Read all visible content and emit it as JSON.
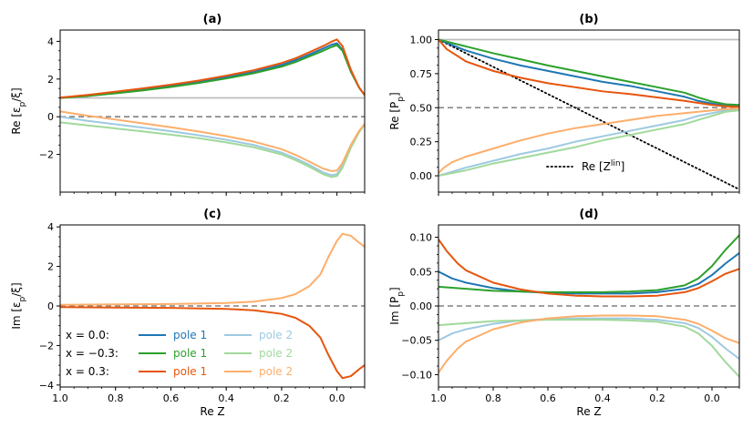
{
  "colors": {
    "pole1_x0": "#1f77b4",
    "pole1_xm": "#2ca02c",
    "pole1_xp": "#e6550d",
    "pole2_x0": "#9ecae1",
    "pole2_xm": "#a1d99b",
    "pole2_xp": "#fdae6b",
    "ref_gray": "#bdbdbd",
    "zero_dash": "#808080"
  },
  "legend": {
    "rows": [
      {
        "x_label": "x = 0.0:",
        "pole1": "pole 1",
        "pole2": "pole 2",
        "c1": "pole1_x0",
        "c2": "pole2_x0"
      },
      {
        "x_label": "x = −0.3:",
        "pole1": "pole 1",
        "pole2": "pole 2",
        "c1": "pole1_xm",
        "c2": "pole2_xm"
      },
      {
        "x_label": "x = 0.3:",
        "pole1": "pole 1",
        "pole2": "pole 2",
        "c1": "pole1_xp",
        "c2": "pole2_xp"
      }
    ]
  },
  "chart_data": [
    {
      "type": "line",
      "panel": "a",
      "title": "(a)",
      "xlabel": "",
      "ylabel": "Re [ε_p/ξ]",
      "xlim": [
        1.0,
        -0.1
      ],
      "ylim": [
        -4.0,
        4.6
      ],
      "xticks": [
        1.0,
        0.8,
        0.6,
        0.4,
        0.2,
        0.0
      ],
      "xtick_labels": [],
      "yticks": [
        -2,
        0,
        2,
        4
      ],
      "ytick_labels": [
        "−2",
        "0",
        "2",
        "4"
      ],
      "hlines": [
        {
          "y": 1.0,
          "style": "solid_gray"
        },
        {
          "y": 0.0,
          "style": "dashed"
        }
      ],
      "series": [
        {
          "name": "x = 0.0 pole 1",
          "color": "pole1_x0",
          "x": [
            1.0,
            0.9,
            0.8,
            0.7,
            0.6,
            0.5,
            0.4,
            0.3,
            0.2,
            0.15,
            0.1,
            0.05,
            0.02,
            0.0,
            -0.02,
            -0.05,
            -0.08,
            -0.1
          ],
          "y": [
            1.0,
            1.12,
            1.28,
            1.45,
            1.63,
            1.85,
            2.1,
            2.38,
            2.75,
            3.0,
            3.3,
            3.62,
            3.82,
            3.9,
            3.55,
            2.4,
            1.55,
            1.15
          ]
        },
        {
          "name": "x = −0.3 pole 1",
          "color": "pole1_xm",
          "x": [
            1.0,
            0.9,
            0.8,
            0.7,
            0.6,
            0.5,
            0.4,
            0.3,
            0.2,
            0.15,
            0.1,
            0.05,
            0.02,
            0.0,
            -0.02,
            -0.05,
            -0.08,
            -0.1
          ],
          "y": [
            1.0,
            1.1,
            1.24,
            1.4,
            1.58,
            1.79,
            2.03,
            2.31,
            2.66,
            2.9,
            3.2,
            3.5,
            3.7,
            3.8,
            3.5,
            2.4,
            1.55,
            1.15
          ]
        },
        {
          "name": "x = 0.3 pole 1",
          "color": "pole1_xp",
          "x": [
            1.0,
            0.9,
            0.8,
            0.7,
            0.6,
            0.5,
            0.4,
            0.3,
            0.2,
            0.15,
            0.1,
            0.05,
            0.02,
            0.0,
            -0.02,
            -0.05,
            -0.08,
            -0.1
          ],
          "y": [
            1.02,
            1.16,
            1.33,
            1.51,
            1.7,
            1.92,
            2.18,
            2.47,
            2.85,
            3.1,
            3.42,
            3.75,
            3.98,
            4.1,
            3.75,
            2.5,
            1.55,
            1.15
          ]
        },
        {
          "name": "x = 0.0 pole 2",
          "color": "pole2_x0",
          "x": [
            1.0,
            0.9,
            0.8,
            0.7,
            0.6,
            0.5,
            0.4,
            0.3,
            0.2,
            0.15,
            0.1,
            0.05,
            0.02,
            0.0,
            -0.02,
            -0.05,
            -0.08,
            -0.1
          ],
          "y": [
            0.0,
            -0.22,
            -0.4,
            -0.58,
            -0.77,
            -0.98,
            -1.22,
            -1.5,
            -1.9,
            -2.2,
            -2.55,
            -2.95,
            -3.1,
            -3.05,
            -2.6,
            -1.6,
            -0.8,
            -0.4
          ]
        },
        {
          "name": "x = −0.3 pole 2",
          "color": "pole2_xm",
          "x": [
            1.0,
            0.9,
            0.8,
            0.7,
            0.6,
            0.5,
            0.4,
            0.3,
            0.2,
            0.15,
            0.1,
            0.05,
            0.02,
            0.0,
            -0.02,
            -0.05,
            -0.08,
            -0.1
          ],
          "y": [
            -0.3,
            -0.46,
            -0.62,
            -0.78,
            -0.95,
            -1.14,
            -1.36,
            -1.62,
            -2.0,
            -2.3,
            -2.65,
            -3.05,
            -3.2,
            -3.15,
            -2.7,
            -1.65,
            -0.82,
            -0.42
          ]
        },
        {
          "name": "x = 0.3 pole 2",
          "color": "pole2_xp",
          "x": [
            1.0,
            0.9,
            0.8,
            0.7,
            0.6,
            0.5,
            0.4,
            0.3,
            0.2,
            0.15,
            0.1,
            0.05,
            0.02,
            0.0,
            -0.02,
            -0.05,
            -0.08,
            -0.1
          ],
          "y": [
            0.28,
            0.05,
            -0.15,
            -0.35,
            -0.56,
            -0.78,
            -1.03,
            -1.32,
            -1.72,
            -2.02,
            -2.38,
            -2.75,
            -2.88,
            -2.85,
            -2.45,
            -1.5,
            -0.75,
            -0.38
          ]
        }
      ]
    },
    {
      "type": "line",
      "panel": "b",
      "title": "(b)",
      "xlabel": "",
      "ylabel": "Re [P_p]",
      "xlim": [
        1.0,
        -0.1
      ],
      "ylim": [
        -0.12,
        1.07
      ],
      "xticks": [
        1.0,
        0.8,
        0.6,
        0.4,
        0.2,
        0.0
      ],
      "xtick_labels": [],
      "yticks": [
        0.0,
        0.25,
        0.5,
        0.75,
        1.0
      ],
      "ytick_labels": [
        "0.00",
        "0.25",
        "0.50",
        "0.75",
        "1.00"
      ],
      "hlines": [
        {
          "y": 1.0,
          "style": "solid_gray"
        },
        {
          "y": 0.5,
          "style": "dashed"
        }
      ],
      "annotation": {
        "text": "Re [Z^lin]",
        "line_label": "Re [Z",
        "sup": "lin",
        "close": "]"
      },
      "series": [
        {
          "name": "Re [Z^lin]",
          "color": "black",
          "dotted": true,
          "x": [
            1.0,
            -0.1
          ],
          "y": [
            1.0,
            -0.1
          ]
        },
        {
          "name": "x = 0.0 pole 1",
          "color": "pole1_x0",
          "x": [
            1.0,
            0.9,
            0.8,
            0.7,
            0.6,
            0.5,
            0.4,
            0.3,
            0.2,
            0.1,
            0.05,
            0.0,
            -0.05,
            -0.1
          ],
          "y": [
            1.0,
            0.92,
            0.86,
            0.81,
            0.77,
            0.73,
            0.69,
            0.66,
            0.62,
            0.58,
            0.55,
            0.53,
            0.515,
            0.51
          ]
        },
        {
          "name": "x = −0.3 pole 1",
          "color": "pole1_xm",
          "x": [
            1.0,
            0.9,
            0.8,
            0.7,
            0.6,
            0.5,
            0.4,
            0.3,
            0.2,
            0.1,
            0.05,
            0.0,
            -0.05,
            -0.1
          ],
          "y": [
            1.0,
            0.95,
            0.9,
            0.855,
            0.81,
            0.77,
            0.73,
            0.69,
            0.65,
            0.61,
            0.575,
            0.545,
            0.525,
            0.52
          ]
        },
        {
          "name": "x = 0.3 pole 1",
          "color": "pole1_xp",
          "x": [
            1.0,
            0.97,
            0.9,
            0.8,
            0.7,
            0.6,
            0.5,
            0.4,
            0.3,
            0.2,
            0.1,
            0.05,
            0.0,
            -0.05,
            -0.1
          ],
          "y": [
            1.0,
            0.93,
            0.84,
            0.77,
            0.72,
            0.68,
            0.65,
            0.62,
            0.6,
            0.575,
            0.55,
            0.535,
            0.52,
            0.51,
            0.505
          ]
        },
        {
          "name": "x = 0.0 pole 2",
          "color": "pole2_x0",
          "x": [
            1.0,
            0.9,
            0.8,
            0.7,
            0.6,
            0.5,
            0.4,
            0.3,
            0.2,
            0.1,
            0.05,
            0.0,
            -0.05,
            -0.1
          ],
          "y": [
            0.0,
            0.06,
            0.11,
            0.16,
            0.2,
            0.25,
            0.29,
            0.33,
            0.37,
            0.41,
            0.44,
            0.46,
            0.48,
            0.49
          ]
        },
        {
          "name": "x = −0.3 pole 2",
          "color": "pole2_xm",
          "x": [
            1.0,
            0.9,
            0.8,
            0.7,
            0.6,
            0.5,
            0.4,
            0.3,
            0.2,
            0.1,
            0.05,
            0.0,
            -0.05,
            -0.1
          ],
          "y": [
            0.0,
            0.04,
            0.09,
            0.13,
            0.17,
            0.21,
            0.26,
            0.3,
            0.34,
            0.38,
            0.41,
            0.44,
            0.47,
            0.48
          ]
        },
        {
          "name": "x = 0.3 pole 2",
          "color": "pole2_xp",
          "x": [
            1.0,
            0.98,
            0.95,
            0.9,
            0.8,
            0.7,
            0.6,
            0.5,
            0.4,
            0.3,
            0.2,
            0.1,
            0.0,
            -0.05,
            -0.1
          ],
          "y": [
            0.02,
            0.06,
            0.1,
            0.14,
            0.2,
            0.26,
            0.31,
            0.35,
            0.38,
            0.41,
            0.44,
            0.46,
            0.48,
            0.49,
            0.495
          ]
        }
      ]
    },
    {
      "type": "line",
      "panel": "c",
      "title": "(c)",
      "xlabel": "Re Z",
      "ylabel": "Im [ε_p/ξ]",
      "xlim": [
        1.0,
        -0.1
      ],
      "ylim": [
        -4.1,
        4.1
      ],
      "xticks": [
        1.0,
        0.8,
        0.6,
        0.4,
        0.2,
        0.0
      ],
      "xtick_labels": [
        "1.0",
        "0.8",
        "0.6",
        "0.4",
        "0.2",
        "0.0"
      ],
      "yticks": [
        -4,
        -2,
        0,
        2,
        4
      ],
      "ytick_labels": [
        "−4",
        "−2",
        "0",
        "2",
        "4"
      ],
      "hlines": [
        {
          "y": 0.0,
          "style": "dashed"
        }
      ],
      "series": [
        {
          "name": "pole 2 (all x)",
          "color": "pole2_xp",
          "x": [
            1.0,
            0.8,
            0.6,
            0.4,
            0.3,
            0.2,
            0.15,
            0.1,
            0.06,
            0.03,
            0.0,
            -0.02,
            -0.05,
            -0.08,
            -0.1
          ],
          "y": [
            0.06,
            0.08,
            0.1,
            0.15,
            0.22,
            0.4,
            0.6,
            1.0,
            1.6,
            2.5,
            3.3,
            3.65,
            3.55,
            3.2,
            3.0
          ]
        },
        {
          "name": "pole 1 (all x)",
          "color": "pole1_xp",
          "x": [
            1.0,
            0.8,
            0.6,
            0.4,
            0.3,
            0.2,
            0.15,
            0.1,
            0.06,
            0.03,
            0.0,
            -0.02,
            -0.05,
            -0.08,
            -0.1
          ],
          "y": [
            -0.06,
            -0.08,
            -0.1,
            -0.15,
            -0.22,
            -0.4,
            -0.6,
            -1.0,
            -1.6,
            -2.5,
            -3.3,
            -3.65,
            -3.55,
            -3.2,
            -3.0
          ]
        }
      ]
    },
    {
      "type": "line",
      "panel": "d",
      "title": "(d)",
      "xlabel": "Re Z",
      "ylabel": "Im [P_p]",
      "xlim": [
        1.0,
        -0.1
      ],
      "ylim": [
        -0.118,
        0.118
      ],
      "xticks": [
        1.0,
        0.8,
        0.6,
        0.4,
        0.2,
        0.0
      ],
      "xtick_labels": [
        "1.0",
        "0.8",
        "0.6",
        "0.4",
        "0.2",
        "0.0"
      ],
      "yticks": [
        -0.1,
        -0.05,
        0.0,
        0.05,
        0.1
      ],
      "ytick_labels": [
        "−0.10",
        "−0.05",
        "0.00",
        "0.05",
        "0.10"
      ],
      "hlines": [
        {
          "y": 0.0,
          "style": "dashed"
        }
      ],
      "series": [
        {
          "name": "x = 0.0 pole 1",
          "color": "pole1_x0",
          "x": [
            1.0,
            0.95,
            0.9,
            0.8,
            0.7,
            0.6,
            0.5,
            0.4,
            0.3,
            0.2,
            0.1,
            0.05,
            0.0,
            -0.05,
            -0.1
          ],
          "y": [
            0.05,
            0.04,
            0.034,
            0.026,
            0.021,
            0.019,
            0.018,
            0.018,
            0.018,
            0.02,
            0.025,
            0.032,
            0.045,
            0.062,
            0.077
          ]
        },
        {
          "name": "x = −0.3 pole 1",
          "color": "pole1_xm",
          "x": [
            1.0,
            0.9,
            0.8,
            0.7,
            0.6,
            0.5,
            0.4,
            0.3,
            0.2,
            0.1,
            0.05,
            0.0,
            -0.05,
            -0.1
          ],
          "y": [
            0.028,
            0.025,
            0.022,
            0.021,
            0.02,
            0.02,
            0.02,
            0.021,
            0.023,
            0.03,
            0.04,
            0.058,
            0.082,
            0.103
          ]
        },
        {
          "name": "x = 0.3 pole 1",
          "color": "pole1_xp",
          "x": [
            1.0,
            0.97,
            0.93,
            0.9,
            0.8,
            0.7,
            0.6,
            0.5,
            0.4,
            0.3,
            0.2,
            0.1,
            0.05,
            0.0,
            -0.05,
            -0.1
          ],
          "y": [
            0.097,
            0.08,
            0.062,
            0.052,
            0.034,
            0.024,
            0.018,
            0.015,
            0.014,
            0.014,
            0.015,
            0.02,
            0.026,
            0.036,
            0.047,
            0.054
          ]
        },
        {
          "name": "x = 0.0 pole 2",
          "color": "pole2_x0",
          "x": [
            1.0,
            0.95,
            0.9,
            0.8,
            0.7,
            0.6,
            0.5,
            0.4,
            0.3,
            0.2,
            0.1,
            0.05,
            0.0,
            -0.05,
            -0.1
          ],
          "y": [
            -0.05,
            -0.04,
            -0.034,
            -0.026,
            -0.021,
            -0.019,
            -0.018,
            -0.018,
            -0.018,
            -0.02,
            -0.025,
            -0.032,
            -0.045,
            -0.062,
            -0.077
          ]
        },
        {
          "name": "x = −0.3 pole 2",
          "color": "pole2_xm",
          "x": [
            1.0,
            0.9,
            0.8,
            0.7,
            0.6,
            0.5,
            0.4,
            0.3,
            0.2,
            0.1,
            0.05,
            0.0,
            -0.05,
            -0.1
          ],
          "y": [
            -0.028,
            -0.025,
            -0.022,
            -0.021,
            -0.02,
            -0.02,
            -0.02,
            -0.021,
            -0.023,
            -0.03,
            -0.04,
            -0.058,
            -0.082,
            -0.103
          ]
        },
        {
          "name": "x = 0.3 pole 2",
          "color": "pole2_xp",
          "x": [
            1.0,
            0.97,
            0.93,
            0.9,
            0.8,
            0.7,
            0.6,
            0.5,
            0.4,
            0.3,
            0.2,
            0.1,
            0.05,
            0.0,
            -0.05,
            -0.1
          ],
          "y": [
            -0.097,
            -0.08,
            -0.062,
            -0.052,
            -0.034,
            -0.024,
            -0.018,
            -0.015,
            -0.014,
            -0.014,
            -0.015,
            -0.02,
            -0.026,
            -0.036,
            -0.047,
            -0.054
          ]
        }
      ]
    }
  ]
}
